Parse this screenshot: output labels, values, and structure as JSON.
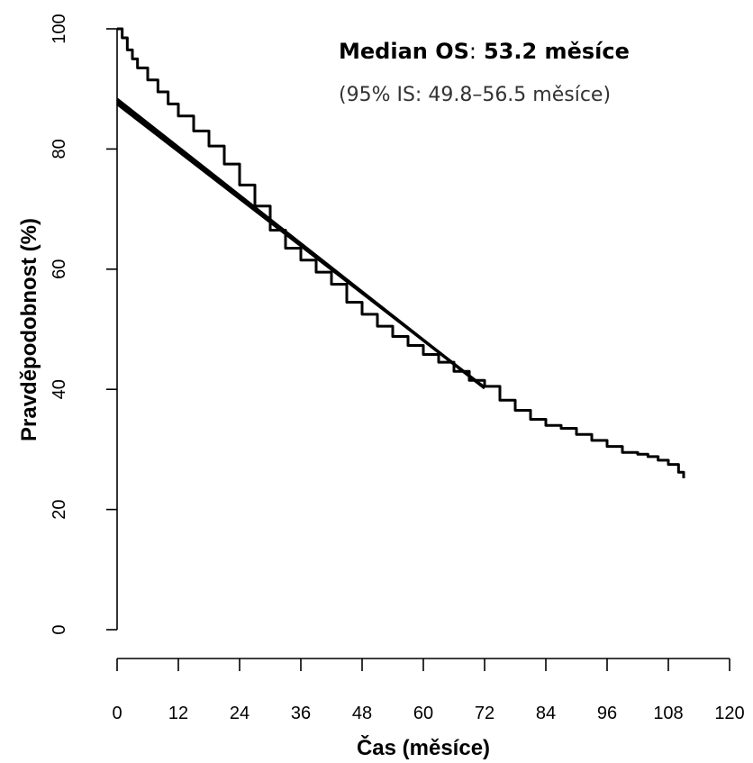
{
  "chart_data": {
    "type": "line",
    "title": "",
    "xlabel": "Čas (měsíce)",
    "ylabel": "Pravděpodobnost (%)",
    "xlim": [
      0,
      120
    ],
    "ylim": [
      0,
      100
    ],
    "x_ticks": [
      "0",
      "12",
      "24",
      "36",
      "48",
      "60",
      "72",
      "84",
      "96",
      "108",
      "120"
    ],
    "y_ticks": [
      "0",
      "20",
      "40",
      "60",
      "80",
      "100"
    ],
    "grid": false,
    "annotation": {
      "label": "Median OS",
      "separator": ":",
      "value": "53.2 měsíce",
      "value_color": "#ff0000",
      "ci": "(95% IS: 49.8–56.5 měsíce)"
    },
    "series": [
      {
        "type": "step",
        "x": [
          0,
          1,
          2,
          3,
          4,
          6,
          8,
          10,
          12,
          15,
          18,
          21,
          24,
          27,
          30,
          33,
          36,
          39,
          42,
          45,
          48,
          51,
          54,
          57,
          60,
          63,
          66,
          69,
          72,
          75,
          78,
          81,
          84,
          87,
          90,
          93,
          96,
          99,
          102,
          104,
          106,
          108,
          110,
          111
        ],
        "y": [
          100,
          98.5,
          96.5,
          95,
          93.5,
          91.5,
          89.5,
          87.5,
          85.5,
          83,
          80.5,
          77.5,
          74,
          70.5,
          66.5,
          63.5,
          61.5,
          59.5,
          57.5,
          54.5,
          52.5,
          50.5,
          48.8,
          47.3,
          45.8,
          44.5,
          43,
          41.5,
          40.5,
          38.2,
          36.5,
          35,
          34,
          33.5,
          32.5,
          31.5,
          30.5,
          29.5,
          29.2,
          28.8,
          28.2,
          27.5,
          26.2,
          25.2
        ]
      },
      {
        "type": "line",
        "x": [
          0,
          72
        ],
        "y": [
          88.3,
          40.2
        ]
      },
      {
        "type": "line",
        "x": [
          0,
          72
        ],
        "y": [
          87.9,
          40.2
        ]
      },
      {
        "type": "line",
        "x": [
          0,
          72
        ],
        "y": [
          87.5,
          40.3
        ]
      }
    ]
  }
}
